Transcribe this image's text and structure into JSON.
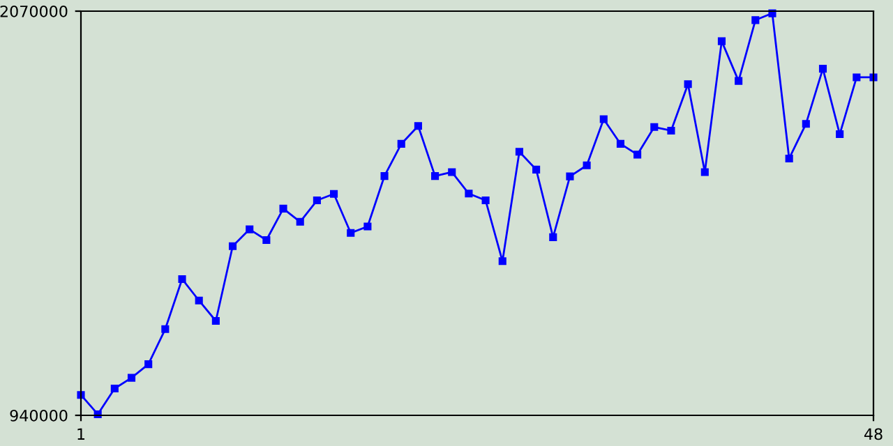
{
  "chart_data": {
    "type": "line",
    "x": [
      1,
      2,
      3,
      4,
      5,
      6,
      7,
      8,
      9,
      10,
      11,
      12,
      13,
      14,
      15,
      16,
      17,
      18,
      19,
      20,
      21,
      22,
      23,
      24,
      25,
      26,
      27,
      28,
      29,
      30,
      31,
      32,
      33,
      34,
      35,
      36,
      37,
      38,
      39,
      40,
      41,
      42,
      43,
      44,
      45,
      46,
      47,
      48
    ],
    "series": [
      {
        "color": "#0000ff",
        "values": [
          997000,
          943000,
          1015000,
          1045000,
          1083000,
          1181000,
          1321000,
          1261000,
          1204000,
          1413000,
          1460000,
          1430000,
          1518000,
          1481000,
          1541000,
          1559000,
          1450000,
          1468000,
          1609000,
          1699000,
          1749000,
          1609000,
          1620000,
          1560000,
          1541000,
          1371000,
          1677000,
          1627000,
          1438000,
          1608000,
          1639000,
          1768000,
          1699000,
          1669000,
          1746000,
          1736000,
          1866000,
          1620000,
          1986000,
          1875000,
          2045000,
          2064000,
          1658000,
          1755000,
          1909000,
          1726000,
          1885000,
          1885000
        ]
      }
    ],
    "xlim": [
      1,
      48
    ],
    "ylim": [
      940000,
      2070000
    ],
    "xticks": [
      1,
      48
    ],
    "yticks": [
      940000,
      2070000
    ],
    "marker": "square"
  }
}
